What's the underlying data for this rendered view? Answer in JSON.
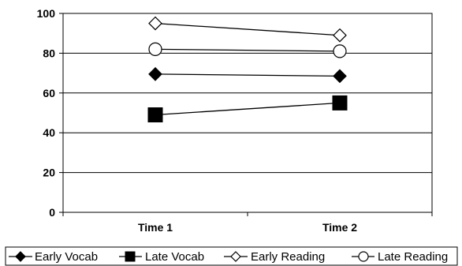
{
  "chart_data": {
    "type": "line",
    "categories": [
      "Time 1",
      "Time 2"
    ],
    "ylim": [
      0,
      100
    ],
    "yticks": [
      0,
      20,
      40,
      60,
      80,
      100
    ],
    "grid": true,
    "legend_placement": "bottom",
    "series": [
      {
        "name": "Early Vocab",
        "values": [
          69.5,
          68.5
        ],
        "marker": "diamond-filled"
      },
      {
        "name": "Late Vocab",
        "values": [
          49,
          55
        ],
        "marker": "square-filled"
      },
      {
        "name": "Early Reading",
        "values": [
          95,
          89
        ],
        "marker": "diamond-open"
      },
      {
        "name": "Late Reading",
        "values": [
          82,
          81
        ],
        "marker": "circle-open"
      }
    ]
  }
}
